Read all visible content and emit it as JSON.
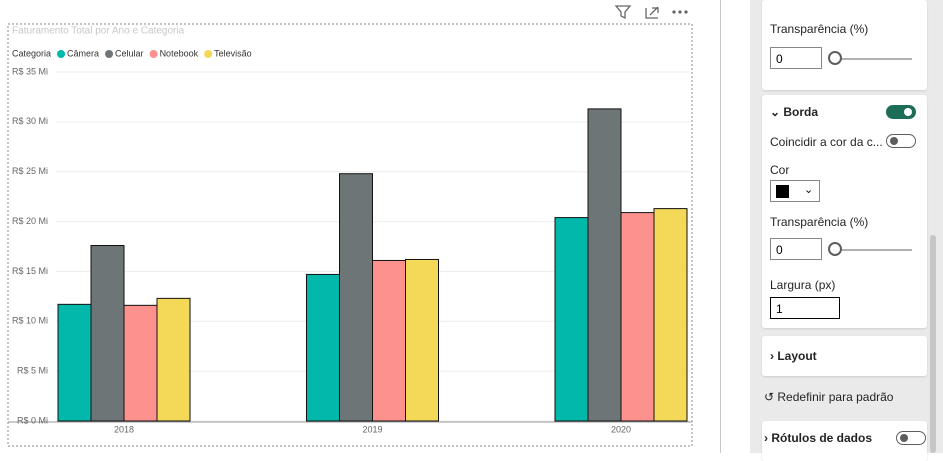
{
  "chart_data": {
    "type": "bar",
    "title": "Faturamento Total por Ano e Categoria",
    "legend_title": "Categoria",
    "categories": [
      "2018",
      "2019",
      "2020"
    ],
    "series": [
      {
        "name": "Câmera",
        "color": "#01B8AA",
        "values": [
          11.7,
          14.7,
          20.4
        ]
      },
      {
        "name": "Celular",
        "color": "#6E7576",
        "values": [
          17.6,
          24.8,
          31.3
        ]
      },
      {
        "name": "Notebook",
        "color": "#FD918E",
        "values": [
          11.6,
          16.1,
          20.9
        ]
      },
      {
        "name": "Televisão",
        "color": "#F4D858",
        "values": [
          12.3,
          16.2,
          21.3
        ]
      }
    ],
    "ylim": [
      0,
      35
    ],
    "yticks": [
      {
        "value": 0,
        "label": "R$ 0 Mi"
      },
      {
        "value": 5,
        "label": "R$ 5 Mi"
      },
      {
        "value": 10,
        "label": "R$ 10 Mi"
      },
      {
        "value": 15,
        "label": "R$ 15 Mi"
      },
      {
        "value": 20,
        "label": "R$ 20 Mi"
      },
      {
        "value": 25,
        "label": "R$ 25 Mi"
      },
      {
        "value": 30,
        "label": "R$ 30 Mi"
      },
      {
        "value": 35,
        "label": "R$ 35 Mi"
      }
    ],
    "grid": true
  },
  "pane": {
    "transparency_label": "Transparência (%)",
    "transparency_value": "0",
    "border": {
      "title": "Borda",
      "match_color": "Coincidir a cor da c...",
      "color_label": "Cor",
      "transparency_label": "Transparência (%)",
      "transparency_value": "0",
      "width_label": "Largura (px)",
      "width_value": "1"
    },
    "layout": "Layout",
    "reset": "Redefinir para padrão",
    "data_labels": "Rótulos de dados"
  }
}
